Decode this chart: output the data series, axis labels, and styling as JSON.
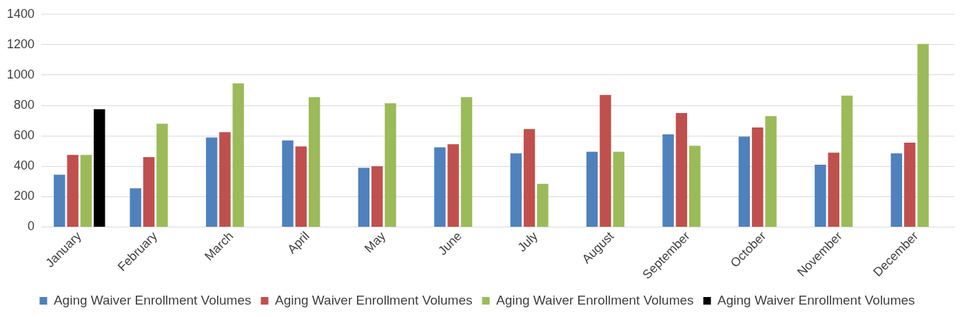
{
  "chart_data": {
    "type": "bar",
    "categories": [
      "January",
      "February",
      "March",
      "April",
      "May",
      "June",
      "July",
      "August",
      "September",
      "October",
      "November",
      "December"
    ],
    "series": [
      {
        "name": "Aging Waiver Enrollment Volumes",
        "color": "#4f81bd",
        "values": [
          345,
          255,
          590,
          570,
          390,
          525,
          485,
          495,
          610,
          595,
          410,
          485
        ]
      },
      {
        "name": "Aging Waiver Enrollment Volumes",
        "color": "#c0504d",
        "values": [
          475,
          460,
          625,
          530,
          400,
          545,
          645,
          870,
          750,
          655,
          490,
          555
        ]
      },
      {
        "name": "Aging Waiver Enrollment Volumes",
        "color": "#9bbb59",
        "values": [
          475,
          680,
          945,
          855,
          815,
          855,
          285,
          495,
          535,
          730,
          865,
          1205
        ]
      },
      {
        "name": "Aging Waiver Enrollment Volumes",
        "color": "#000000",
        "values": [
          775,
          null,
          null,
          null,
          null,
          null,
          null,
          null,
          null,
          null,
          null,
          null
        ]
      }
    ],
    "ylim": [
      0,
      1400
    ],
    "yticks": [
      0,
      200,
      400,
      600,
      800,
      1000,
      1200,
      1400
    ],
    "grid": "y",
    "legend": "bottom"
  }
}
